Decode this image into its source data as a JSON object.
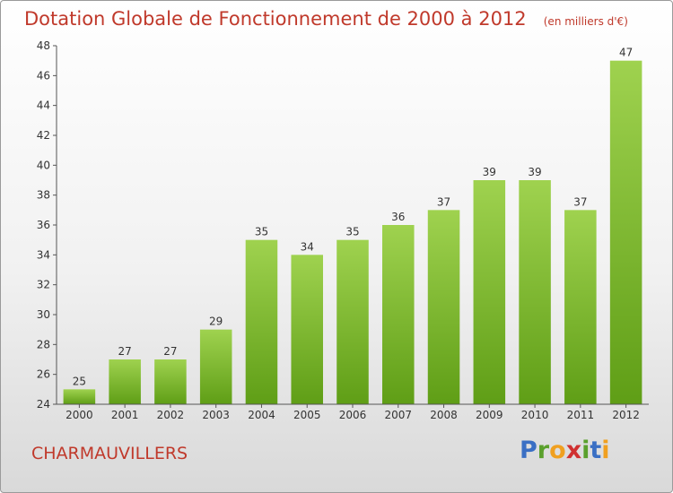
{
  "chart_data": {
    "type": "bar",
    "title": "Dotation Globale de Fonctionnement de 2000 à 2012",
    "subtitle": "(en milliers d'€)",
    "categories": [
      "2000",
      "2001",
      "2002",
      "2003",
      "2004",
      "2005",
      "2006",
      "2007",
      "2008",
      "2009",
      "2010",
      "2011",
      "2012"
    ],
    "values": [
      25,
      27,
      27,
      29,
      35,
      34,
      35,
      36,
      37,
      39,
      39,
      37,
      47
    ],
    "ylim": [
      24,
      48
    ],
    "yticks": [
      24,
      26,
      28,
      30,
      32,
      34,
      36,
      38,
      40,
      42,
      44,
      46,
      48
    ],
    "xlabel": "",
    "ylabel": "",
    "grid": false,
    "bar_color_top": "#9fd24f",
    "bar_color_bottom": "#5f9e16"
  },
  "commune": "CHARMAUVILLERS",
  "logo": {
    "letters": [
      "P",
      "r",
      "o",
      "x",
      "i",
      "t",
      "i"
    ],
    "colors": [
      "#3a6fc4",
      "#5aa02c",
      "#f0a020",
      "#d03030",
      "#5aa02c",
      "#3a6fc4",
      "#f0a020"
    ]
  }
}
